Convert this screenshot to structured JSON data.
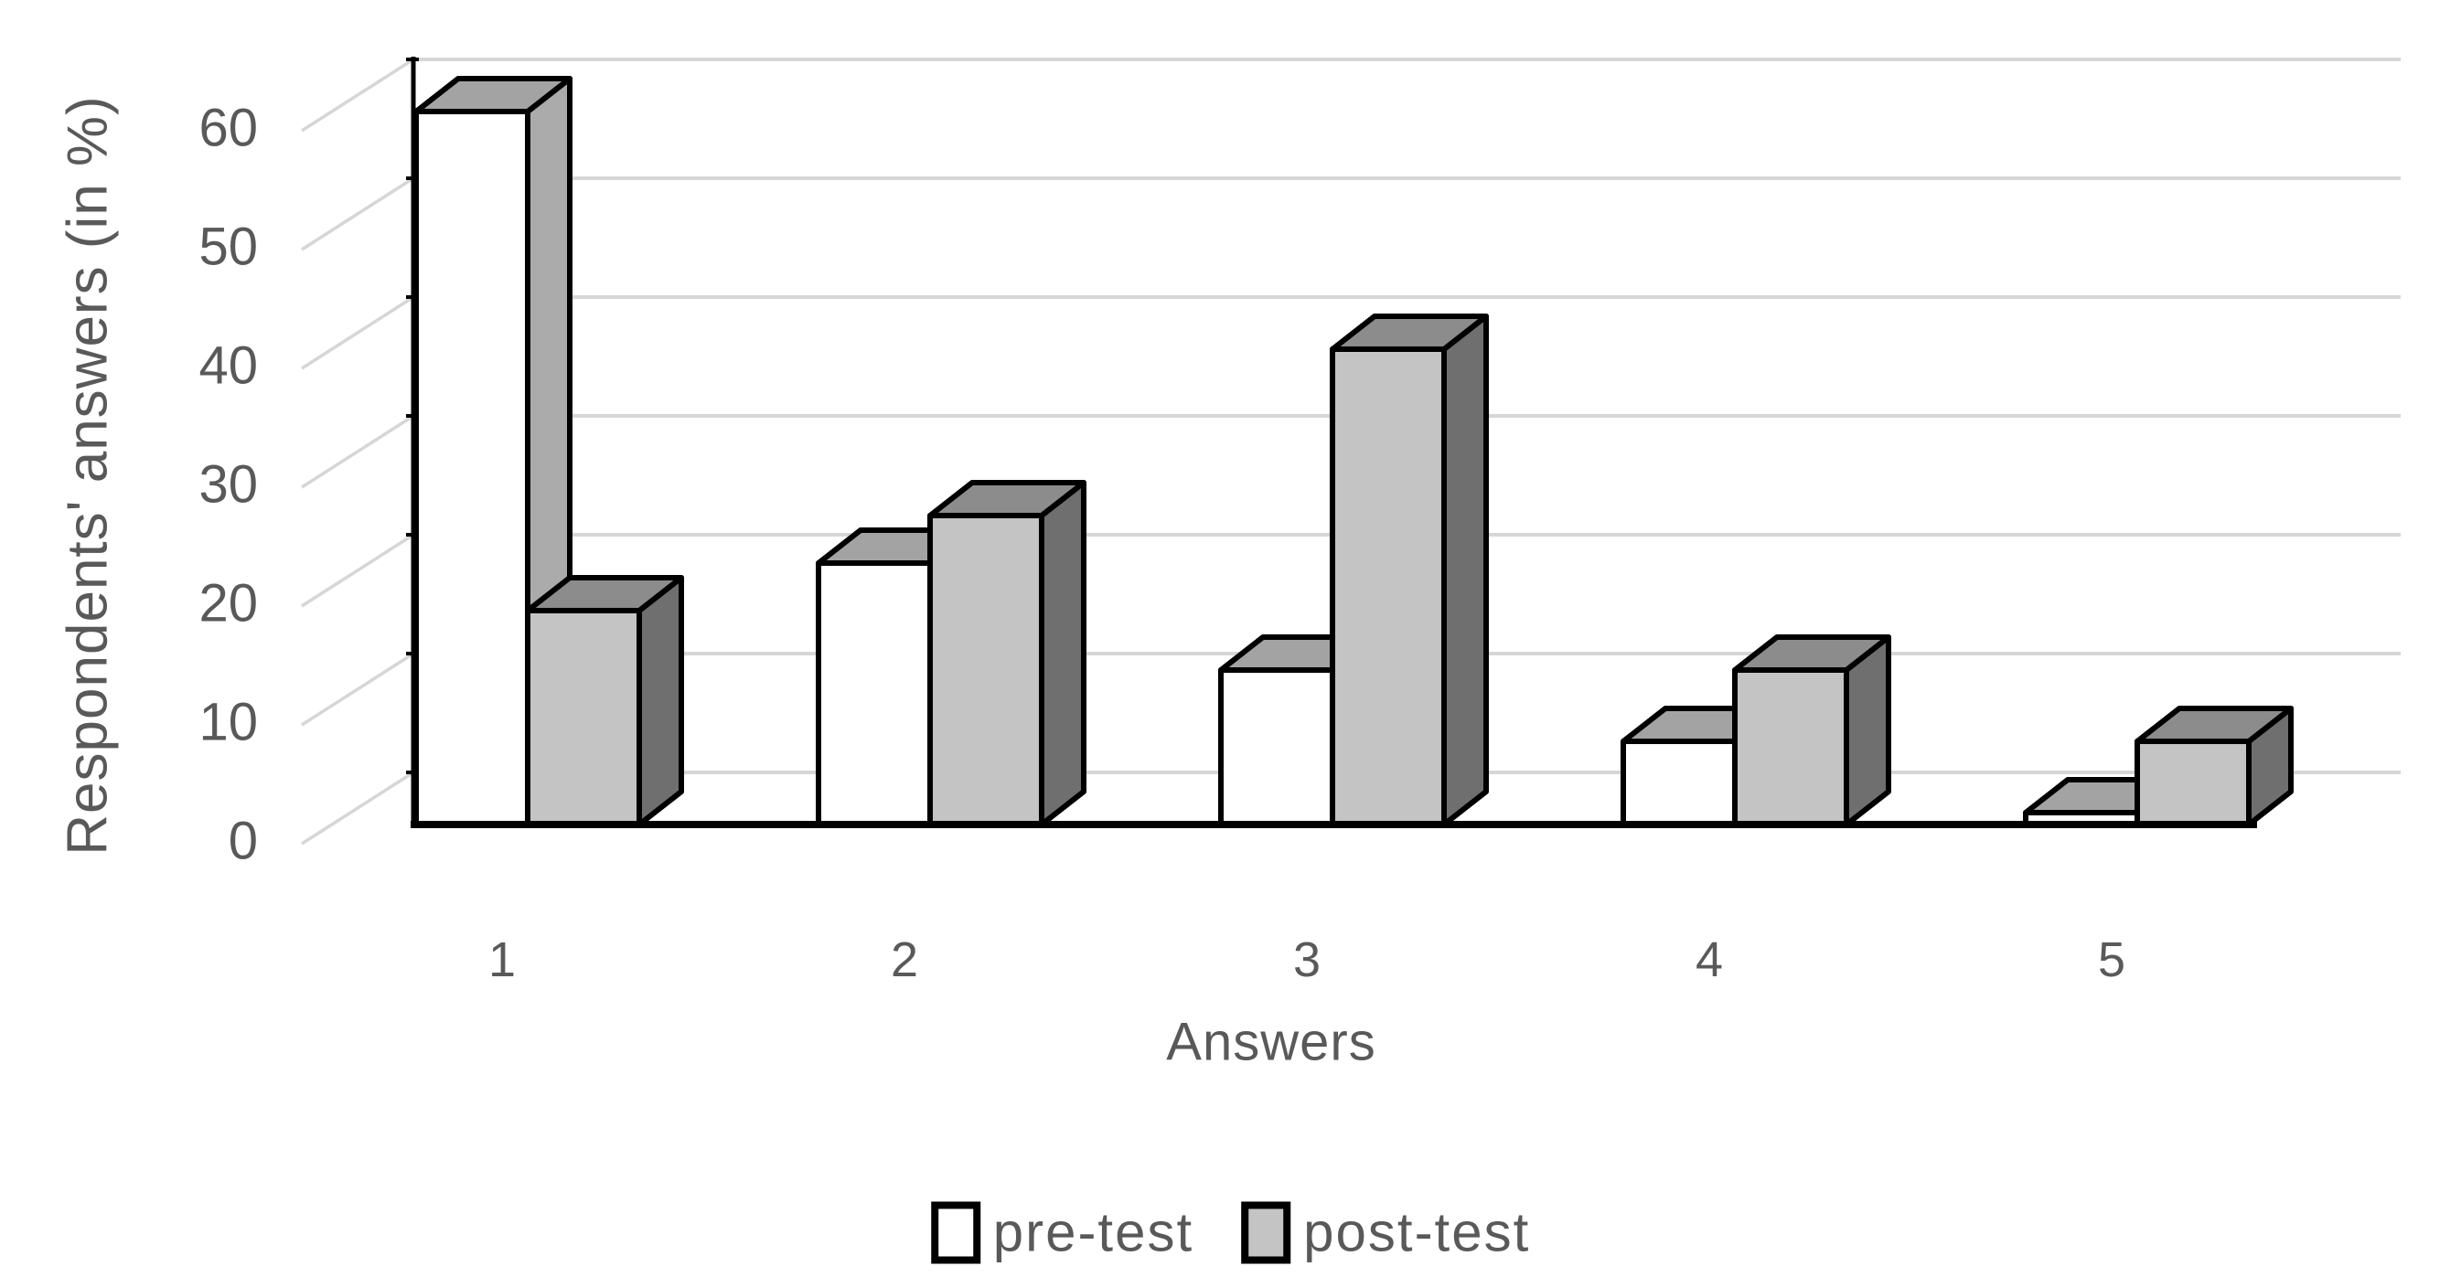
{
  "chart_data": {
    "type": "bar",
    "style": "3d-column",
    "title": "",
    "xlabel": "Answers",
    "ylabel": "Respondents' answers (in %)",
    "categories": [
      "1",
      "2",
      "3",
      "4",
      "5"
    ],
    "series": [
      {
        "name": "pre-test",
        "values": [
          60,
          22,
          13,
          7,
          1
        ],
        "front_color": "#ffffff",
        "top_color": "#a3a3a3",
        "side_color": "#ababab"
      },
      {
        "name": "post-test",
        "values": [
          18,
          26,
          40,
          13,
          7
        ],
        "front_color": "#c4c4c4",
        "top_color": "#8c8c8c",
        "side_color": "#6f6f6f"
      }
    ],
    "y_ticks": [
      0,
      10,
      20,
      30,
      40,
      50,
      60
    ],
    "ylim": [
      0,
      60
    ],
    "grid": true,
    "legend_position": "bottom",
    "colors": {
      "outline": "#000000",
      "gridline": "#d6d6d6",
      "text": "#595959",
      "background": "#ffffff"
    }
  }
}
